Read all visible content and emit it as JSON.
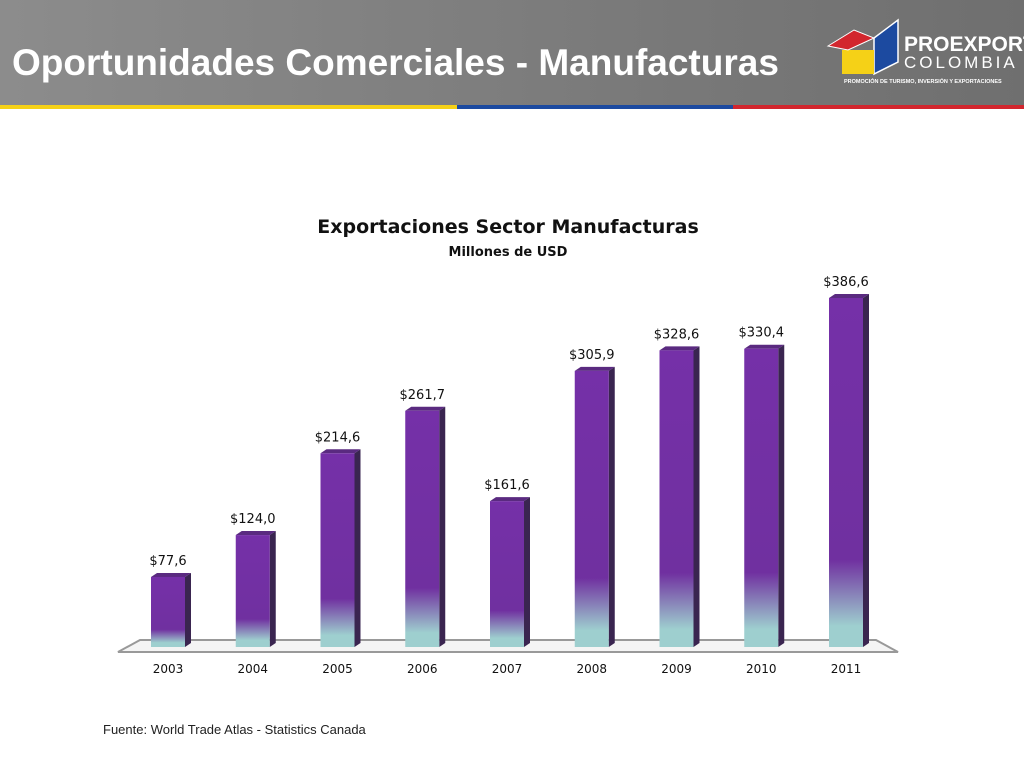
{
  "header": {
    "title": "Oportunidades Comerciales - Manufacturas",
    "stripe_colors": [
      "#f5d117",
      "#1c4aa0",
      "#d2262e"
    ]
  },
  "logo": {
    "name": "PROEXPORT",
    "country": "COLOMBIA",
    "tagline": "PROMOCIÓN DE TURISMO, INVERSIÓN Y EXPORTACIONES"
  },
  "chart_data": {
    "type": "bar",
    "title": "Exportaciones Sector Manufacturas",
    "subtitle": "Millones de USD",
    "categories": [
      "2003",
      "2004",
      "2005",
      "2006",
      "2007",
      "2008",
      "2009",
      "2010",
      "2011"
    ],
    "values": [
      77.6,
      124.0,
      214.6,
      261.7,
      161.6,
      305.9,
      328.6,
      330.4,
      386.6
    ],
    "data_labels": [
      "$77,6",
      "$124,0",
      "$214,6",
      "$261,7",
      "$161,6",
      "$305,9",
      "$328,6",
      "$330,4",
      "$386,6"
    ],
    "ylim": [
      0,
      386.6
    ],
    "grid": false,
    "colors": {
      "bar": "#7030a0",
      "bar_base": "#9ecfcf"
    }
  },
  "footer": {
    "source": "Fuente: World Trade Atlas - Statistics Canada"
  }
}
